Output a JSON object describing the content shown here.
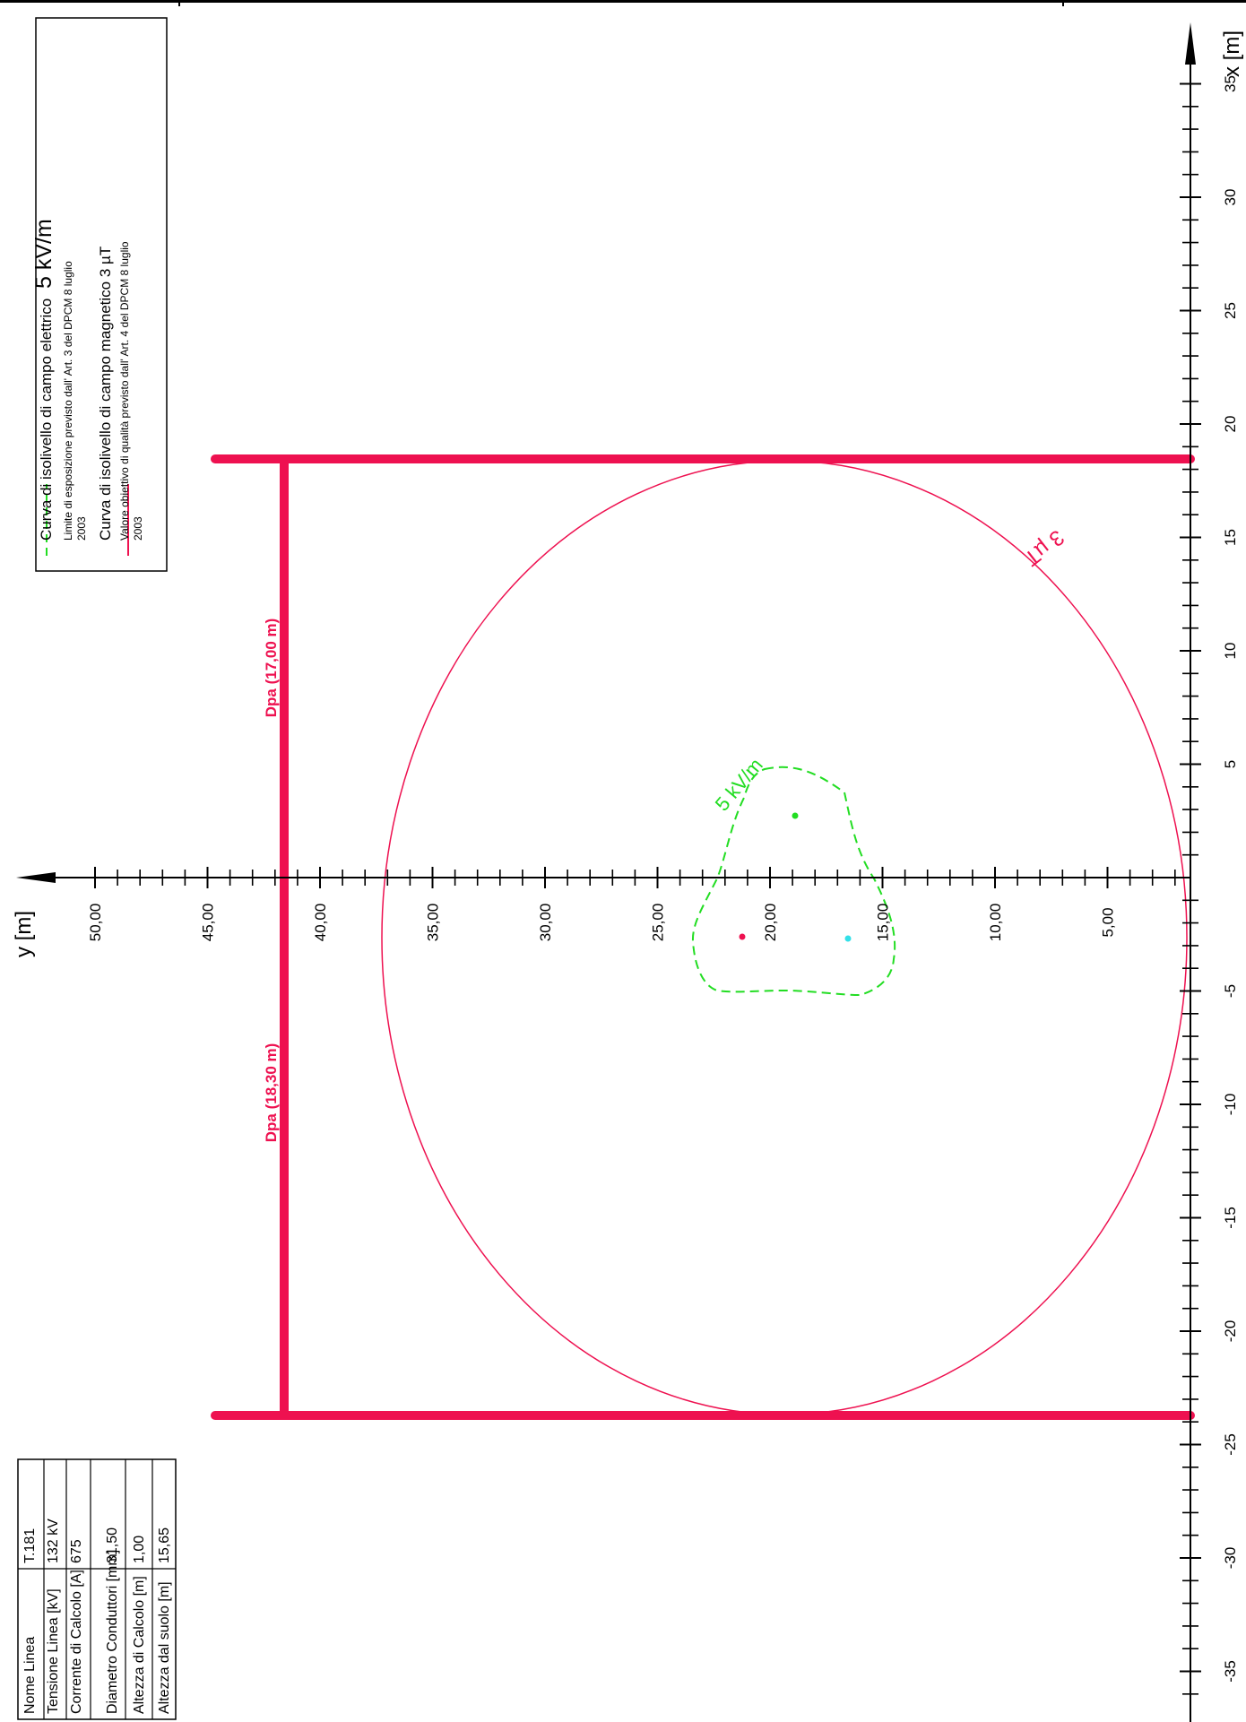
{
  "axes": {
    "x_label": "x [m]",
    "y_label": "y [m]",
    "x_ticks": [
      "35",
      "30",
      "25",
      "20",
      "15",
      "10",
      "5",
      "-5",
      "-10",
      "-15",
      "-20",
      "-25",
      "-30",
      "-35"
    ],
    "y_ticks": [
      "50,00",
      "45,00",
      "40,00",
      "35,00",
      "30,00",
      "25,00",
      "20,00",
      "15,00",
      "10,00",
      "5,00"
    ]
  },
  "legend": {
    "electric_title": "Curva di isolivello di campo elettrico",
    "electric_value": "5 kV/m",
    "electric_note_1": "Limite di esposizione previsto dall' Art. 3 del DPCM 8 luglio",
    "electric_note_2": "2003",
    "magnetic_title": "Curva di isolivello di campo magnetico 3 µT",
    "magnetic_note_1": "Valore obiettivo di qualità previsto dall' Art. 4 del DPCM 8 luglio",
    "magnetic_note_2": "2003",
    "electric_color": "#22dd22",
    "magnetic_color": "#ee1150"
  },
  "annotations": {
    "magnetic_curve_label": "3 µT",
    "electric_curve_label": "5 kV/m",
    "dpa_upper": "Dpa (17,00 m)",
    "dpa_lower": "Dpa (18,30 m)"
  },
  "line_table": {
    "rows": [
      {
        "label": "Nome Linea",
        "value": "T.181"
      },
      {
        "label": "Tensione Linea [kV]",
        "value": "132 kV"
      },
      {
        "label": "Corrente di Calcolo [A]",
        "value": "675"
      },
      {
        "label": "Diametro Conduttori [mm]",
        "value": "31,50"
      },
      {
        "label": "Altezza di Calcolo [m]",
        "value": "1,00"
      },
      {
        "label": "Altezza dal suolo [m]",
        "value": "15,65"
      }
    ]
  }
}
